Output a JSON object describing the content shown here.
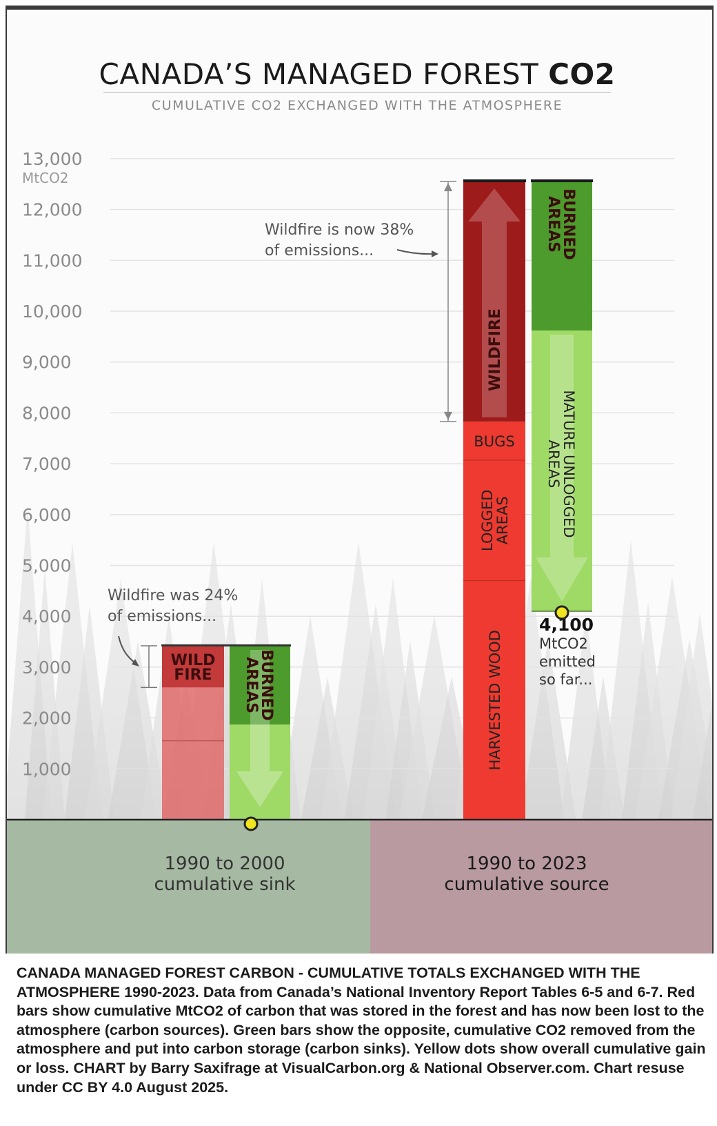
{
  "chart_data": {
    "type": "bar",
    "title": "CANADA’S MANAGED FOREST ",
    "title_bold": "CO2",
    "subtitle": "CUMULATIVE CO2 EXCHANGED WITH THE ATMOSPHERE",
    "ylabel": "MtCO2",
    "ylim": [
      0,
      13000
    ],
    "yticks": [
      "13,000",
      "12,000",
      "11,000",
      "10,000",
      "9,000",
      "8,000",
      "7,000",
      "6,000",
      "5,000",
      "4,000",
      "3,000",
      "2,000",
      "1,000"
    ],
    "ytick_values": [
      13000,
      12000,
      11000,
      10000,
      9000,
      8000,
      7000,
      6000,
      5000,
      4000,
      3000,
      2000,
      1000
    ],
    "grid": true,
    "bars": [
      {
        "group": "1990 to 2000 cumulative sink",
        "kind": "source",
        "segments": [
          {
            "label": "",
            "from": 0,
            "to": 1550
          },
          {
            "label": "",
            "from": 1550,
            "to": 2600
          },
          {
            "label_lines": [
              "WILD",
              "FIRE"
            ],
            "from": 2600,
            "to": 3420
          }
        ]
      },
      {
        "group": "1990 to 2000 cumulative sink",
        "kind": "sink",
        "segments": [
          {
            "label": "",
            "from": 0,
            "to": 1870
          },
          {
            "label_lines": [
              "BURNED",
              "AREAS"
            ],
            "from": 1870,
            "to": 3420
          }
        ],
        "net": 0
      },
      {
        "group": "1990 to 2023 cumulative source",
        "kind": "source",
        "segments": [
          {
            "label": "HARVESTED WOOD",
            "from": 0,
            "to": 4700
          },
          {
            "label_lines": [
              "LOGGED",
              "AREAS"
            ],
            "from": 4700,
            "to": 7070
          },
          {
            "label": "BUGS",
            "from": 7070,
            "to": 7830
          },
          {
            "label": "WILDFIRE",
            "from": 7830,
            "to": 12550
          }
        ]
      },
      {
        "group": "1990 to 2023 cumulative source",
        "kind": "sink",
        "segments": [
          {
            "label_lines": [
              "MATURE UNLOGGED",
              "AREAS"
            ],
            "from": 4100,
            "to": 9620
          },
          {
            "label_lines": [
              "BURNED",
              "AREAS"
            ],
            "from": 9620,
            "to": 12550
          }
        ],
        "net": 4100
      }
    ],
    "annotations": {
      "early": [
        "Wildfire was 24%",
        "of emissions..."
      ],
      "late": [
        "Wildfire is now 38%",
        "of emissions..."
      ],
      "total_value": "4,100",
      "total_lines": [
        "MtCO2",
        "emitted",
        "so far..."
      ]
    },
    "regions": [
      {
        "lines": [
          "1990 to 2000",
          "cumulative sink"
        ]
      },
      {
        "lines": [
          "1990 to 2023",
          "cumulative source"
        ]
      }
    ],
    "colors": {
      "source_main": "#e8e5e5",
      "source_light": "#e06a6a",
      "wildfire_dark": "#9e1b1b",
      "red_bright": "#ee3a30",
      "green_dark": "#4c9b2c",
      "green_light": "#9fd966",
      "sink_region": "#a6b9a3",
      "source_region": "#b89aa0",
      "dot": "#f0e51e"
    }
  },
  "caption": "CANADA MANAGED FOREST CARBON - CUMULATIVE TOTALS EXCHANGED WITH THE ATMOSPHERE 1990-2023. Data from Canada’s National Inventory Report Tables 6-5 and 6-7. Red bars show cumulative MtCO2 of carbon that was stored in the forest and has now been lost to the atmosphere (carbon sources). Green bars show  the opposite, cumulative CO2 removed from the  atmosphere and put into carbon storage (carbon sinks). Yellow dots show overall cumulative gain or loss. CHART by Barry Saxifrage at VisualCarbon.org & National Observer.com. Chart resuse under CC BY 4.0 August 2025."
}
